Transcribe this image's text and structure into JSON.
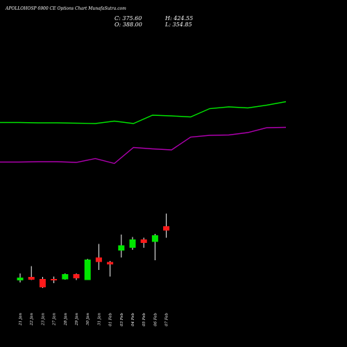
{
  "title": "APOLLOHOSP 6900 CE Options Chart MunafaSutra.com",
  "ohlc": {
    "close": "C: 375.60",
    "open": "O: 388.00",
    "high": "H: 424.55",
    "low": "L: 354.85"
  },
  "colors": {
    "background": "#000000",
    "up": "#00e600",
    "down": "#ff1a1a",
    "wick": "#ffffff",
    "line_top": "#00e600",
    "line_bottom": "#b000b0"
  },
  "chart_data": {
    "type": "candlestick",
    "categories": [
      "21 Jan",
      "22 Jan",
      "23 Jan",
      "27 Jan",
      "28 Jan",
      "29 Jan",
      "30 Jan",
      "31 Jan",
      "01 Feb",
      "03 Feb",
      "04 Feb",
      "05 Feb",
      "06 Feb",
      "07 Feb"
    ],
    "candles": [
      {
        "date": "21 Jan",
        "open": 232,
        "close": 240,
        "high": 252,
        "low": 226,
        "dir": "up"
      },
      {
        "date": "22 Jan",
        "open": 242,
        "close": 234,
        "high": 273,
        "low": 233,
        "dir": "down"
      },
      {
        "date": "23 Jan",
        "open": 236,
        "close": 212,
        "high": 242,
        "low": 210,
        "dir": "down"
      },
      {
        "date": "27 Jan",
        "open": 236,
        "close": 233,
        "high": 243,
        "low": 224,
        "dir": "down"
      },
      {
        "date": "28 Jan",
        "open": 235,
        "close": 250,
        "high": 252,
        "low": 234,
        "dir": "up"
      },
      {
        "date": "29 Jan",
        "open": 250,
        "close": 238,
        "high": 252,
        "low": 233,
        "dir": "down"
      },
      {
        "date": "30 Jan",
        "open": 233,
        "close": 292,
        "high": 294,
        "low": 233,
        "dir": "up"
      },
      {
        "date": "31 Jan",
        "open": 298,
        "close": 285,
        "high": 337,
        "low": 262,
        "dir": "down"
      },
      {
        "date": "01 Feb",
        "open": 285,
        "close": 278,
        "high": 288,
        "low": 243,
        "dir": "down"
      },
      {
        "date": "03 Feb",
        "open": 318,
        "close": 333,
        "high": 364,
        "low": 298,
        "dir": "up"
      },
      {
        "date": "04 Feb",
        "open": 326,
        "close": 350,
        "high": 357,
        "low": 320,
        "dir": "up"
      },
      {
        "date": "05 Feb",
        "open": 350,
        "close": 340,
        "high": 355,
        "low": 326,
        "dir": "down"
      },
      {
        "date": "06 Feb",
        "open": 343,
        "close": 362,
        "high": 366,
        "low": 290,
        "dir": "up"
      },
      {
        "date": "07 Feb",
        "open": 388,
        "close": 375.6,
        "high": 424.55,
        "low": 354.85,
        "dir": "down"
      }
    ],
    "line_top": [
      687,
      687,
      686,
      686,
      685,
      684,
      691,
      684,
      708,
      706,
      703,
      727,
      732,
      729,
      737,
      747
    ],
    "line_bottom": [
      573,
      573,
      574,
      574,
      572,
      583,
      569,
      615,
      611,
      608,
      645,
      650,
      651,
      658,
      672,
      673
    ],
    "ylim": [
      160,
      920
    ]
  }
}
